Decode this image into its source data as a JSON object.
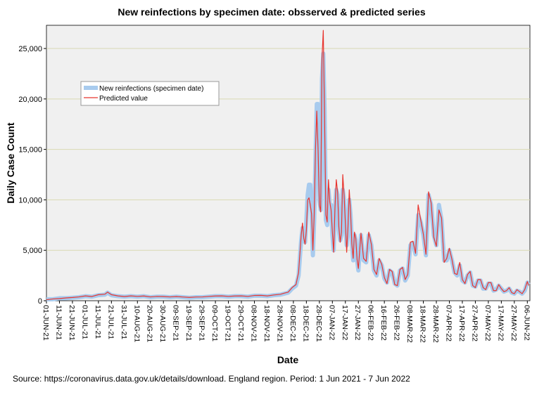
{
  "chart_data": {
    "type": "line",
    "title": "New reinfections by specimen date: obsserved & predicted series",
    "x_label": "Date",
    "y_label": "Daily Case Count",
    "source": "Source: https://coronavirus.data.gov.uk/details/download. England region. Period: 1 Jun 2021 - 7 Jun 2022",
    "legend": "upper left",
    "grid": true,
    "xlim": [
      0,
      372
    ],
    "ylim": [
      0,
      27300
    ],
    "yticks": [
      0,
      {
        "value": 5000,
        "label": "5,000"
      },
      {
        "value": 10000,
        "label": "10,000"
      },
      {
        "value": 15000,
        "label": "15,000"
      },
      {
        "value": 20000,
        "label": "20,000"
      },
      {
        "value": 25000,
        "label": "25,000"
      }
    ],
    "xticks": [
      {
        "value": 0,
        "label": "01-JUN-21"
      },
      {
        "value": 10,
        "label": "11-JUN-21"
      },
      {
        "value": 20,
        "label": "21-JUN-21"
      },
      {
        "value": 30,
        "label": "01-JUL-21"
      },
      {
        "value": 40,
        "label": "11-JUL-21"
      },
      {
        "value": 50,
        "label": "21-JUL-21"
      },
      {
        "value": 60,
        "label": "31-JUL-21"
      },
      {
        "value": 70,
        "label": "10-AUG-21"
      },
      {
        "value": 80,
        "label": "20-AUG-21"
      },
      {
        "value": 90,
        "label": "30-AUG-21"
      },
      {
        "value": 100,
        "label": "09-SEP-21"
      },
      {
        "value": 110,
        "label": "19-SEP-21"
      },
      {
        "value": 120,
        "label": "29-SEP-21"
      },
      {
        "value": 130,
        "label": "09-OCT-21"
      },
      {
        "value": 140,
        "label": "19-OCT-21"
      },
      {
        "value": 150,
        "label": "29-OCT-21"
      },
      {
        "value": 160,
        "label": "08-NOV-21"
      },
      {
        "value": 170,
        "label": "18-NOV-21"
      },
      {
        "value": 180,
        "label": "28-NOV-21"
      },
      {
        "value": 190,
        "label": "08-DEC-21"
      },
      {
        "value": 200,
        "label": "18-DEC-21"
      },
      {
        "value": 210,
        "label": "28-DEC-21"
      },
      {
        "value": 220,
        "label": "07-JAN-22"
      },
      {
        "value": 230,
        "label": "17-JAN-22"
      },
      {
        "value": 240,
        "label": "27-JAN-22"
      },
      {
        "value": 250,
        "label": "06-FEB-22"
      },
      {
        "value": 260,
        "label": "16-FEB-22"
      },
      {
        "value": 270,
        "label": "26-FEB-22"
      },
      {
        "value": 280,
        "label": "08-MAR-22"
      },
      {
        "value": 290,
        "label": "18-MAR-22"
      },
      {
        "value": 300,
        "label": "28-MAR-22"
      },
      {
        "value": 310,
        "label": "07-APR-22"
      },
      {
        "value": 320,
        "label": "17-APR-22"
      },
      {
        "value": 330,
        "label": "27-APR-22"
      },
      {
        "value": 340,
        "label": "07-MAY-22"
      },
      {
        "value": 350,
        "label": "17-MAY-22"
      },
      {
        "value": 360,
        "label": "27-MAY-22"
      },
      {
        "value": 370,
        "label": "06-JUN-22"
      }
    ],
    "x": [
      0,
      5,
      10,
      15,
      20,
      25,
      30,
      35,
      40,
      45,
      47,
      50,
      55,
      60,
      65,
      70,
      75,
      80,
      85,
      90,
      95,
      100,
      105,
      110,
      115,
      120,
      125,
      130,
      135,
      140,
      145,
      150,
      155,
      160,
      165,
      170,
      175,
      180,
      183,
      186,
      189,
      192,
      194,
      196,
      197,
      198,
      199,
      200,
      201,
      202,
      203,
      204,
      205,
      206,
      207,
      208,
      209,
      210,
      211,
      212,
      213,
      214,
      215,
      216,
      217,
      218,
      219,
      220,
      221,
      222,
      223,
      224,
      225,
      226,
      227,
      228,
      229,
      230,
      231,
      232,
      233,
      234,
      235,
      236,
      237,
      238,
      239,
      240,
      242,
      244,
      246,
      248,
      250,
      252,
      254,
      256,
      258,
      260,
      262,
      264,
      266,
      268,
      270,
      272,
      274,
      276,
      278,
      280,
      282,
      284,
      286,
      288,
      290,
      292,
      294,
      296,
      298,
      300,
      302,
      304,
      306,
      308,
      310,
      312,
      314,
      316,
      318,
      320,
      322,
      324,
      326,
      328,
      330,
      332,
      334,
      336,
      338,
      340,
      342,
      344,
      346,
      348,
      350,
      352,
      354,
      356,
      358,
      360,
      362,
      364,
      366,
      368,
      370,
      371
    ],
    "series": [
      {
        "name": "New reinfections (specimen date)",
        "color": "#a8cbee",
        "values": [
          150,
          150,
          250,
          250,
          300,
          350,
          450,
          400,
          550,
          600,
          800,
          550,
          450,
          400,
          450,
          400,
          450,
          350,
          400,
          400,
          350,
          400,
          350,
          300,
          350,
          350,
          400,
          450,
          450,
          400,
          450,
          450,
          400,
          500,
          500,
          450,
          550,
          600,
          700,
          800,
          1200,
          1500,
          2500,
          6000,
          7200,
          6000,
          5800,
          8000,
          10500,
          11500,
          11500,
          9000,
          4500,
          8000,
          14000,
          19500,
          19500,
          10000,
          9000,
          22000,
          24500,
          19000,
          8000,
          7500,
          11000,
          9500,
          9500,
          6500,
          5000,
          9000,
          11000,
          10500,
          7000,
          6000,
          6500,
          11000,
          10000,
          7500,
          5500,
          7000,
          10000,
          8500,
          5800,
          4000,
          6500,
          6000,
          4000,
          3000,
          6500,
          4000,
          3800,
          6500,
          5500,
          3000,
          2500,
          4000,
          3500,
          2200,
          1800,
          3000,
          2800,
          1700,
          1500,
          3000,
          3200,
          2000,
          2500,
          5500,
          5700,
          4600,
          8500,
          7800,
          6500,
          4500,
          10500,
          9500,
          6500,
          5500,
          9500,
          8000,
          4000,
          4000,
          5000,
          4000,
          2800,
          2500,
          3500,
          2000,
          1800,
          2500,
          2800,
          1500,
          1400,
          2000,
          2000,
          1200,
          1200,
          1700,
          1700,
          1000,
          1100,
          1500,
          1200,
          900,
          1000,
          1200,
          800,
          700,
          1000,
          900,
          700,
          1000,
          1800,
          1600
        ]
      },
      {
        "name": "Predicted value",
        "color": "#e8352f",
        "values": [
          100,
          180,
          220,
          280,
          320,
          380,
          480,
          420,
          600,
          650,
          850,
          600,
          480,
          420,
          480,
          430,
          470,
          380,
          430,
          420,
          380,
          420,
          370,
          330,
          370,
          380,
          430,
          470,
          480,
          430,
          470,
          480,
          430,
          520,
          530,
          480,
          570,
          640,
          750,
          850,
          1300,
          1600,
          2800,
          6500,
          7700,
          6200,
          5600,
          7000,
          10000,
          10200,
          9500,
          8600,
          5000,
          8500,
          15000,
          18800,
          15000,
          9500,
          8800,
          24000,
          26800,
          18000,
          8500,
          7800,
          12000,
          9800,
          9000,
          6800,
          4800,
          9200,
          12000,
          10800,
          7300,
          5800,
          6800,
          12500,
          10500,
          7700,
          4800,
          7300,
          11000,
          8800,
          5600,
          4200,
          6800,
          6200,
          4100,
          3200,
          6700,
          4200,
          3900,
          6800,
          5600,
          3100,
          2600,
          4200,
          3600,
          2300,
          1700,
          3100,
          2900,
          1600,
          1500,
          3100,
          3300,
          2100,
          2600,
          5800,
          5900,
          4700,
          9500,
          8000,
          6600,
          4600,
          10800,
          9700,
          6300,
          5400,
          9000,
          8200,
          3800,
          4200,
          5200,
          4100,
          2700,
          2600,
          3800,
          2100,
          1700,
          2600,
          2900,
          1500,
          1300,
          2100,
          2100,
          1300,
          1100,
          1800,
          1800,
          1000,
          1000,
          1600,
          1200,
          900,
          1000,
          1300,
          800,
          700,
          1100,
          900,
          700,
          1100,
          1900,
          1500
        ]
      }
    ]
  }
}
